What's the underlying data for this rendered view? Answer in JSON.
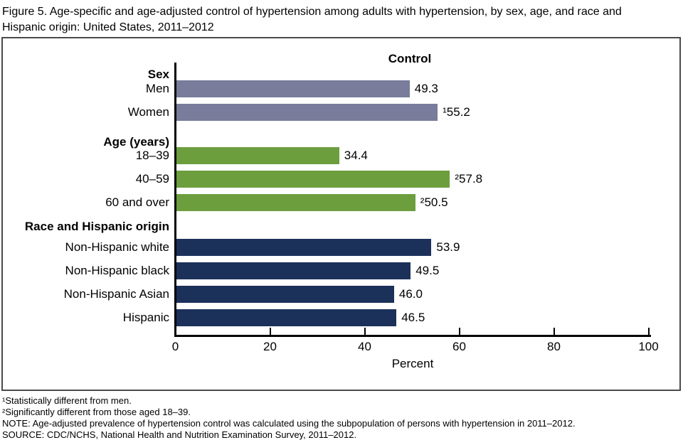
{
  "figure": {
    "title": "Figure 5. Age-specific and age-adjusted control of hypertension among adults with hypertension, by sex, age, and race and Hispanic origin: United States, 2011–2012"
  },
  "chart_data": {
    "type": "bar",
    "orientation": "horizontal",
    "header": "Control",
    "xlabel": "Percent",
    "xlim": [
      0,
      100
    ],
    "xticks": [
      0,
      20,
      40,
      60,
      80,
      100
    ],
    "grid": false,
    "legend": "none",
    "groups": [
      {
        "name": "Sex",
        "color": "#797d9b",
        "bars": [
          {
            "label": "Men",
            "value": 49.3,
            "value_label": "49.3"
          },
          {
            "label": "Women",
            "value": 55.2,
            "value_label": "¹55.2"
          }
        ]
      },
      {
        "name": "Age (years)",
        "color": "#6c9e3e",
        "bars": [
          {
            "label": "18–39",
            "value": 34.4,
            "value_label": "34.4"
          },
          {
            "label": "40–59",
            "value": 57.8,
            "value_label": "²57.8"
          },
          {
            "label": "60 and over",
            "value": 50.5,
            "value_label": "²50.5"
          }
        ]
      },
      {
        "name": "Race and Hispanic origin",
        "color": "#1c315a",
        "bars": [
          {
            "label": "Non-Hispanic white",
            "value": 53.9,
            "value_label": "53.9"
          },
          {
            "label": "Non-Hispanic black",
            "value": 49.5,
            "value_label": "49.5"
          },
          {
            "label": "Non-Hispanic Asian",
            "value": 46.0,
            "value_label": "46.0"
          },
          {
            "label": "Hispanic",
            "value": 46.5,
            "value_label": "46.5"
          }
        ]
      }
    ]
  },
  "footnotes": {
    "line1": "¹Statistically different from men.",
    "line2": "²Significantly different from those aged 18–39.",
    "note": "NOTE: Age-adjusted prevalence of hypertension control was calculated using the subpopulation of persons with hypertension in 2011–2012.",
    "source": "SOURCE: CDC/NCHS, National Health and Nutrition Examination Survey, 2011–2012."
  }
}
